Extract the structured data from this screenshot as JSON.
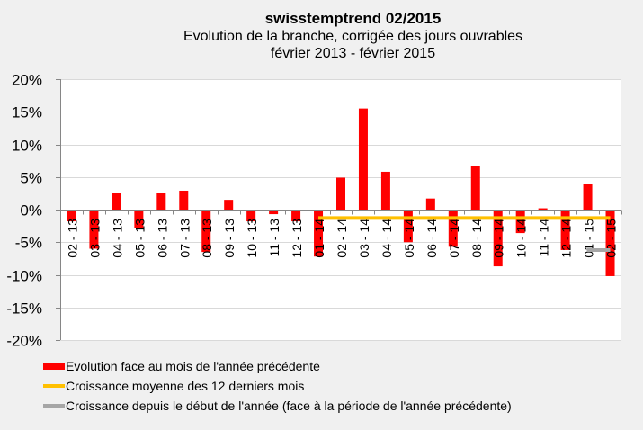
{
  "header": {
    "title": "swisstemptrend 02/2015",
    "subtitle": "Evolution de la branche, corrigée des jours ouvrables",
    "period": "février 2013 - février 2015"
  },
  "colors": {
    "bar": "#ff0000",
    "avg_line": "#ffc000",
    "ytd_line": "#a6a6a6",
    "grid": "#d9d9d9",
    "axis": "#868686",
    "plot_bg": "#ffffff",
    "page_bg": "#f0f0f0"
  },
  "legend": [
    {
      "label": "Evolution face au mois de l'année précédente",
      "type": "bar",
      "color": "#ff0000"
    },
    {
      "label": "Croissance moyenne des 12 derniers mois",
      "type": "line",
      "color": "#ffc000"
    },
    {
      "label": "Croissance depuis le début de l'année (face à la période de l'année précédente)",
      "type": "line",
      "color": "#a6a6a6"
    }
  ],
  "chart_data": {
    "type": "bar",
    "title": "swisstemptrend 02/2015",
    "subtitle": "Evolution de la branche, corrigée des jours ouvrables — février 2013 - février 2015",
    "xlabel": "",
    "ylabel": "",
    "ylim": [
      -20,
      20
    ],
    "yticks": [
      20,
      15,
      10,
      5,
      0,
      -5,
      -10,
      -15,
      -20
    ],
    "ytick_labels": [
      "20%",
      "15%",
      "10%",
      "5%",
      "0%",
      "-5%",
      "-10%",
      "-15%",
      "-20%"
    ],
    "grid": true,
    "legend_position": "bottom",
    "categories": [
      "02 - 13",
      "03 - 13",
      "04 - 13",
      "05 - 13",
      "06 - 13",
      "07 - 13",
      "08 - 13",
      "09 - 13",
      "10 - 13",
      "11 - 13",
      "12 - 13",
      "01 - 14",
      "02 - 14",
      "03 - 14",
      "04 - 14",
      "05 - 14",
      "06 - 14",
      "07 - 14",
      "08 - 14",
      "09 - 14",
      "10 - 14",
      "11 - 14",
      "12 - 14",
      "01 - 15",
      "02 - 15"
    ],
    "series": [
      {
        "name": "Evolution face au mois de l'année précédente",
        "type": "bar",
        "values": [
          -1.8,
          -6.0,
          2.6,
          -2.8,
          2.6,
          2.9,
          -6.5,
          1.5,
          -1.8,
          -0.7,
          -1.8,
          -7.2,
          4.9,
          15.5,
          5.8,
          -5.0,
          1.7,
          -5.7,
          6.7,
          -8.7,
          -3.6,
          0.2,
          -6.2,
          3.9,
          -10.2
        ]
      },
      {
        "name": "Croissance moyenne des 12 derniers mois",
        "type": "line",
        "from_category": "01 - 14",
        "to_category": "02 - 15",
        "value": -1.3
      },
      {
        "name": "Croissance depuis le début de l'année (face à la période de l'année précédente)",
        "type": "line",
        "from_category": "01 - 15",
        "to_category": "02 - 15",
        "value": -6.2
      }
    ]
  }
}
